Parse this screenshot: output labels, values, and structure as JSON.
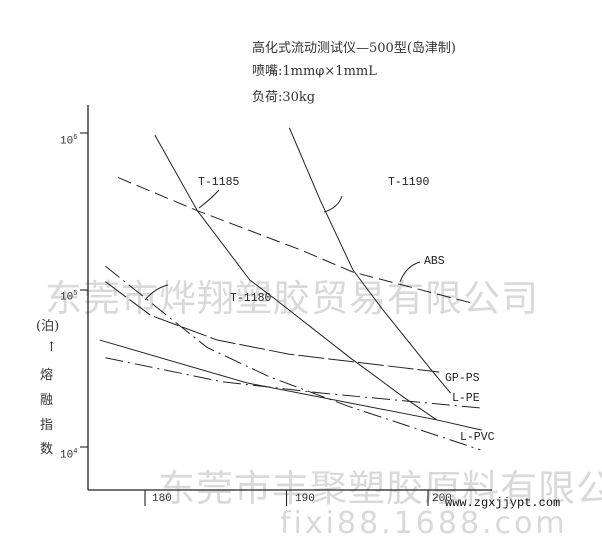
{
  "header": {
    "line1": "高化式流动测试仪—500型(岛津制)",
    "line2": "喷嘴:1mmφ×1mmL",
    "line3": "负荷:30kg"
  },
  "watermarks": {
    "top": "东莞市烨翔塑胶贸易有限公司",
    "bottom": "东莞市丰聚塑胶原料有限公司",
    "url": "www.zgxjjypt.com",
    "footer": "fixi88.1688.com"
  },
  "chart_data": {
    "type": "line",
    "title": "",
    "xlabel": "",
    "ylabel_parts": [
      "(泊)",
      "↑",
      "熔",
      "融",
      "指",
      "数"
    ],
    "x_ticks": [
      "180",
      "190",
      "200"
    ],
    "y_ticks": [
      {
        "base": "10",
        "exp": "6"
      },
      {
        "base": "10",
        "exp": "5"
      },
      {
        "base": "10",
        "exp": "4"
      }
    ],
    "xlim": [
      176,
      204.4
    ],
    "ylim": [
      6000,
      1200000
    ],
    "yscale": "log",
    "grid": false,
    "legend": "none (inline labels)",
    "series": [
      {
        "name": "T-1185",
        "style": "solid",
        "points": [
          [
            180.7,
            970000
          ],
          [
            183.7,
            320000
          ],
          [
            187.4,
            116000
          ],
          [
            189.3,
            86000
          ],
          [
            194.5,
            37000
          ],
          [
            198.2,
            21000
          ],
          [
            200.6,
            14900
          ]
        ]
      },
      {
        "name": "T-1190",
        "style": "solid",
        "points": [
          [
            190.2,
            1080000
          ],
          [
            192.4,
            370000
          ],
          [
            194.7,
            134000
          ],
          [
            196.8,
            75000
          ],
          [
            200.1,
            32000
          ],
          [
            201.6,
            22000
          ]
        ]
      },
      {
        "name": "ABS",
        "style": "dashed",
        "points": [
          [
            178.1,
            520000
          ],
          [
            183.7,
            320000
          ],
          [
            191.0,
            180000
          ],
          [
            194.7,
            130000
          ],
          [
            203.0,
            83000
          ]
        ]
      },
      {
        "name": "T-1180",
        "style": "dashdot",
        "points": [
          [
            177.2,
            142000
          ],
          [
            181.8,
            66000
          ],
          [
            184.4,
            43000
          ],
          [
            188.8,
            28000
          ],
          [
            194.5,
            18000
          ],
          [
            203.7,
            9600
          ]
        ]
      },
      {
        "name": "GP-PS",
        "style": "longdash",
        "points": [
          [
            177.2,
            113000
          ],
          [
            180.4,
            69000
          ],
          [
            185.1,
            48000
          ],
          [
            190.2,
            39000
          ],
          [
            200.8,
            30000
          ]
        ]
      },
      {
        "name": "L-PE",
        "style": "dashdot",
        "points": [
          [
            177.2,
            37000
          ],
          [
            185.5,
            26000
          ],
          [
            192.6,
            22000
          ],
          [
            203.8,
            17700
          ]
        ]
      },
      {
        "name": "L-PVC",
        "style": "solid",
        "points": [
          [
            176.8,
            48000
          ],
          [
            187.2,
            25600
          ],
          [
            200.6,
            14900
          ],
          [
            203.8,
            12800
          ]
        ]
      }
    ]
  }
}
